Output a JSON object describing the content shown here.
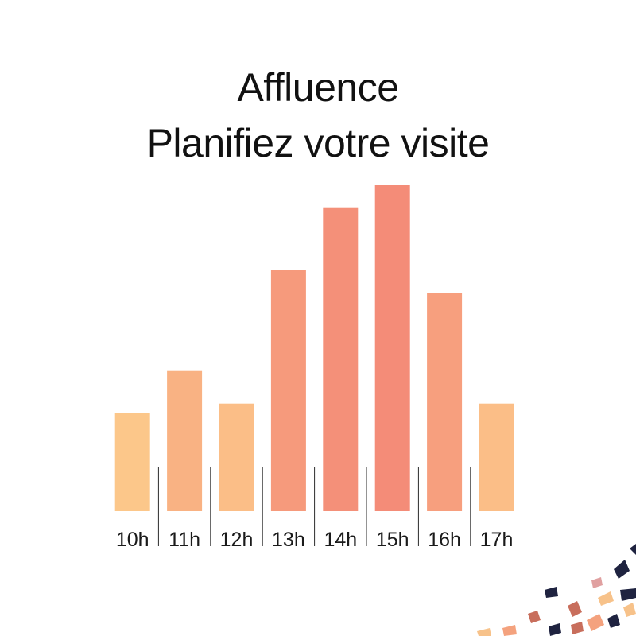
{
  "header": {
    "title_line1": "Affluence",
    "title_line2": "Planifiez votre visite"
  },
  "chart_data": {
    "type": "bar",
    "title": "Affluence\nPlanifiez votre visite",
    "xlabel": "",
    "ylabel": "",
    "categories": [
      "10h",
      "11h",
      "12h",
      "13h",
      "14h",
      "15h",
      "16h",
      "17h"
    ],
    "values": [
      30,
      43,
      33,
      74,
      93,
      100,
      67,
      33
    ],
    "ylim": [
      0,
      100
    ],
    "grid": false,
    "legend": "none",
    "colors": {
      "low": "#fcc78a",
      "high": "#f48c78"
    }
  }
}
